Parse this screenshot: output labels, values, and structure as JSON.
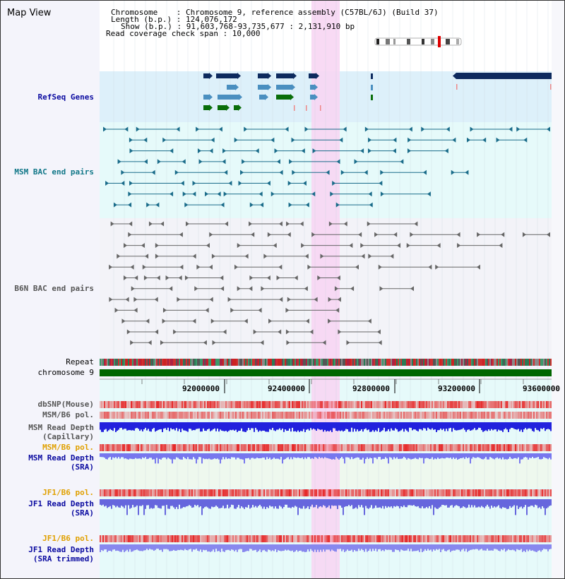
{
  "view": {
    "title": "Map View"
  },
  "header": {
    "line1": "Chromosome    : Chromosome 9, reference assembly (C57BL/6J) (Build 37)",
    "line2": "Length (b.p.) : 124,076,172",
    "line3": "Show (b.p.) : 91,603,768-93,735,677 : 2,131,910 bp",
    "line4": "Read coverage check span : 10,000"
  },
  "tracks": {
    "refseq": "RefSeq Genes",
    "msm_bac": "MSM BAC end pairs",
    "b6n_bac": "B6N BAC end pairs",
    "repeat": "Repeat",
    "chromosome": "chromosome 9",
    "dbsnp": "dbSNP(Mouse)",
    "msm_b6_pol_1": "MSM/B6 pol.",
    "msm_read_depth_cap_1": "MSM Read Depth",
    "msm_read_depth_cap_2": "(Capillary)",
    "msm_b6_pol_2": "MSM/B6 pol.",
    "msm_read_depth_sra_1": "MSM Read Depth",
    "msm_read_depth_sra_2": "(SRA)",
    "jf1_b6_pol_1": "JF1/B6 pol.",
    "jf1_read_depth_sra_1": "JF1 Read Depth",
    "jf1_read_depth_sra_2": "(SRA)",
    "jf1_b6_pol_2": "JF1/B6 pol.",
    "jf1_read_depth_trim_1": "JF1 Read Depth",
    "jf1_read_depth_trim_2": "(SRA trimmed)"
  },
  "axis": {
    "ticks": [
      "92000000",
      "92400000",
      "92800000",
      "93200000",
      "93600000"
    ]
  },
  "colors": {
    "label_blue": "#0a0aa0",
    "label_teal": "#117788",
    "label_orange": "#e0a000",
    "label_gray": "#555555",
    "refseq_bg": "#ddf0fa",
    "msm_bg": "#e6fafa",
    "highlight": "#f7d6f3",
    "gene_dark": "#0d2a5e",
    "gene_mid": "#4a8fc0",
    "gene_green": "#0a6e0a",
    "chromosome_green": "#006600",
    "depth_blue": "#2222dd",
    "sra_blue": "#7777ee"
  }
}
